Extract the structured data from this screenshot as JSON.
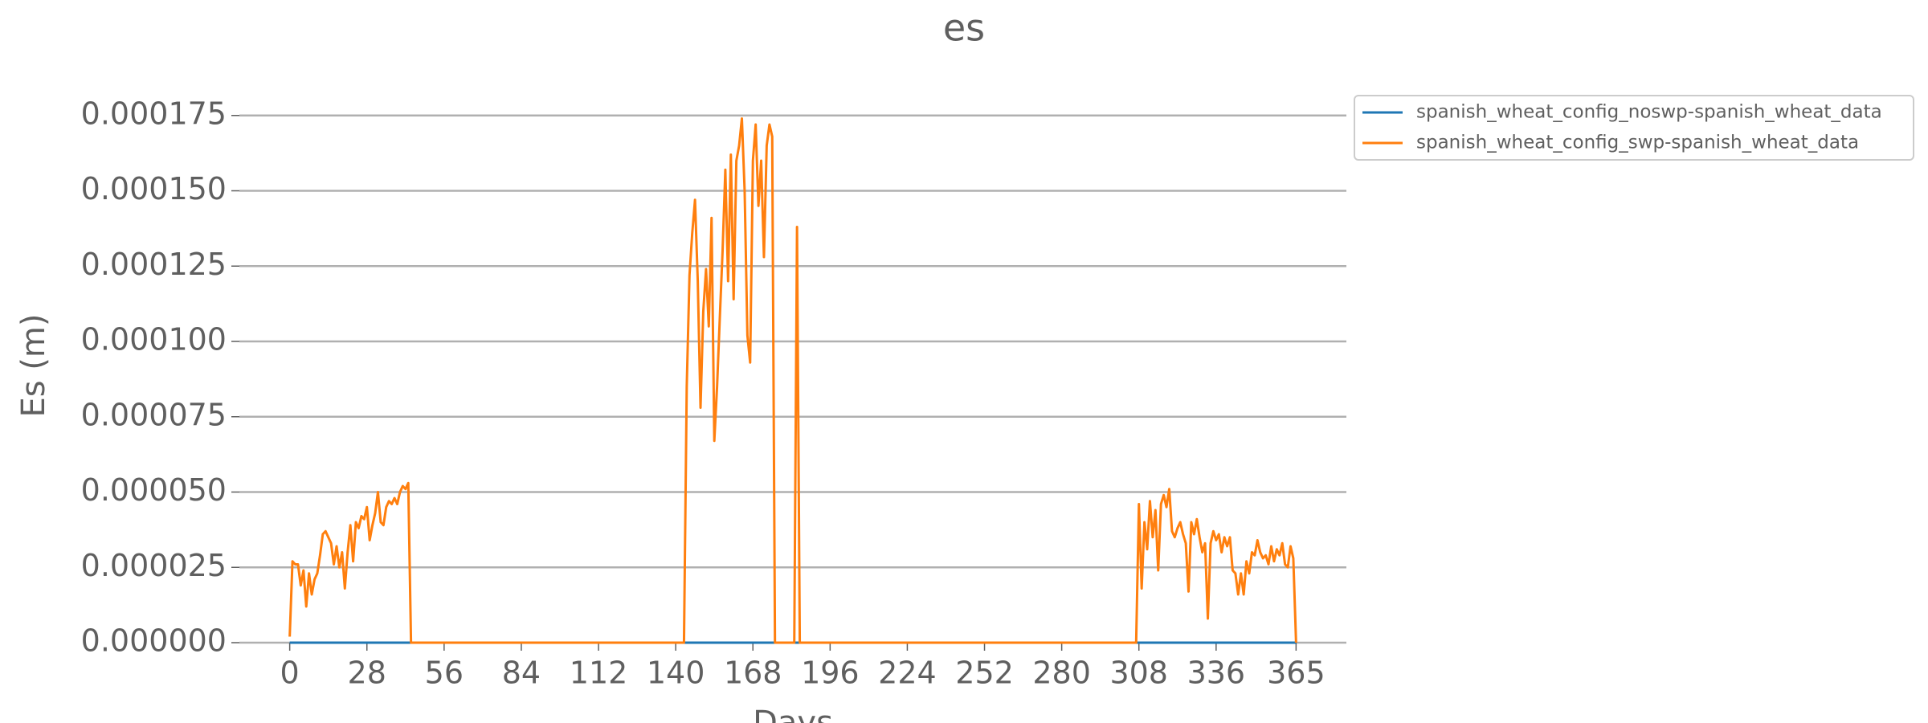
{
  "chart_data": {
    "type": "line",
    "title": "es",
    "x_label": "Days",
    "y_label": "Es (m)",
    "xlim": [
      -18.25,
      383.25
    ],
    "ylim": [
      0,
      0.00018
    ],
    "xticks": [
      0,
      28,
      56,
      84,
      112,
      140,
      168,
      196,
      224,
      252,
      280,
      308,
      336,
      365
    ],
    "yticks": [
      {
        "value": 0,
        "label": "0.000000"
      },
      {
        "value": 2.5e-05,
        "label": "0.000025"
      },
      {
        "value": 5e-05,
        "label": "0.000050"
      },
      {
        "value": 7.5e-05,
        "label": "0.000075"
      },
      {
        "value": 0.0001,
        "label": "0.000100"
      },
      {
        "value": 0.000125,
        "label": "0.000125"
      },
      {
        "value": 0.00015,
        "label": "0.000150"
      },
      {
        "value": 0.000175,
        "label": "0.000175"
      }
    ],
    "grid": true,
    "legend": "outside-upper-right",
    "series": [
      {
        "name": "spanish_wheat_config_noswp-spanish_wheat_data",
        "color": "#1f77b4",
        "x": [
          0,
          365
        ],
        "values": [
          0,
          0
        ]
      },
      {
        "name": "spanish_wheat_config_swp-spanish_wheat_data",
        "color": "#ff7f0e",
        "x": [
          0,
          1,
          2,
          3,
          4,
          5,
          6,
          7,
          8,
          9,
          10,
          11,
          12,
          13,
          14,
          15,
          16,
          17,
          18,
          19,
          20,
          21,
          22,
          23,
          24,
          25,
          26,
          27,
          28,
          29,
          30,
          31,
          32,
          33,
          34,
          35,
          36,
          37,
          38,
          39,
          40,
          41,
          42,
          43,
          44,
          143,
          144,
          145,
          146,
          147,
          148,
          149,
          150,
          151,
          152,
          153,
          154,
          155,
          156,
          157,
          158,
          159,
          160,
          161,
          162,
          163,
          164,
          165,
          166,
          167,
          168,
          169,
          170,
          171,
          172,
          173,
          174,
          175,
          176,
          183,
          184,
          185,
          307,
          308,
          309,
          310,
          311,
          312,
          313,
          314,
          315,
          316,
          317,
          318,
          319,
          320,
          321,
          322,
          323,
          324,
          325,
          326,
          327,
          328,
          329,
          330,
          331,
          332,
          333,
          334,
          335,
          336,
          337,
          338,
          339,
          340,
          341,
          342,
          343,
          344,
          345,
          346,
          347,
          348,
          349,
          350,
          351,
          352,
          353,
          354,
          355,
          356,
          357,
          358,
          359,
          360,
          361,
          362,
          363,
          364,
          365
        ],
        "values": [
          2e-06,
          2.7e-05,
          2.6e-05,
          2.6e-05,
          1.9e-05,
          2.4e-05,
          1.2e-05,
          2.3e-05,
          1.6e-05,
          2.1e-05,
          2.3e-05,
          2.9e-05,
          3.6e-05,
          3.7e-05,
          3.5e-05,
          3.3e-05,
          2.6e-05,
          3.2e-05,
          2.5e-05,
          3e-05,
          1.8e-05,
          3e-05,
          3.9e-05,
          2.7e-05,
          4e-05,
          3.8e-05,
          4.2e-05,
          4.1e-05,
          4.5e-05,
          3.4e-05,
          3.9e-05,
          4.3e-05,
          5e-05,
          4e-05,
          3.9e-05,
          4.5e-05,
          4.7e-05,
          4.6e-05,
          4.8e-05,
          4.6e-05,
          5e-05,
          5.2e-05,
          5.1e-05,
          5.3e-05,
          0,
          0,
          8.5e-05,
          0.000122,
          0.000136,
          0.000147,
          0.00012,
          7.8e-05,
          0.00011,
          0.000124,
          0.000105,
          0.000141,
          6.7e-05,
          8.5e-05,
          0.000108,
          0.00013,
          0.000157,
          0.00012,
          0.000162,
          0.000114,
          0.00016,
          0.000165,
          0.000174,
          0.00015,
          0.000102,
          9.3e-05,
          0.00016,
          0.000172,
          0.000145,
          0.00016,
          0.000128,
          0.000165,
          0.000172,
          0.000168,
          0,
          0,
          0.000138,
          0,
          0,
          4.6e-05,
          1.8e-05,
          4e-05,
          3.1e-05,
          4.7e-05,
          3.5e-05,
          4.4e-05,
          2.4e-05,
          4.6e-05,
          4.9e-05,
          4.5e-05,
          5.1e-05,
          3.7e-05,
          3.5e-05,
          3.8e-05,
          4e-05,
          3.6e-05,
          3.3e-05,
          1.7e-05,
          4e-05,
          3.6e-05,
          4.1e-05,
          3.5e-05,
          3e-05,
          3.3e-05,
          8e-06,
          3.3e-05,
          3.7e-05,
          3.4e-05,
          3.6e-05,
          3e-05,
          3.5e-05,
          3.2e-05,
          3.5e-05,
          2.4e-05,
          2.3e-05,
          1.6e-05,
          2.3e-05,
          1.6e-05,
          2.7e-05,
          2.3e-05,
          3e-05,
          2.9e-05,
          3.4e-05,
          3e-05,
          2.8e-05,
          2.9e-05,
          2.6e-05,
          3.2e-05,
          2.7e-05,
          3.1e-05,
          2.9e-05,
          3.3e-05,
          2.6e-05,
          2.5e-05,
          3.2e-05,
          2.8e-05,
          0
        ]
      }
    ]
  }
}
